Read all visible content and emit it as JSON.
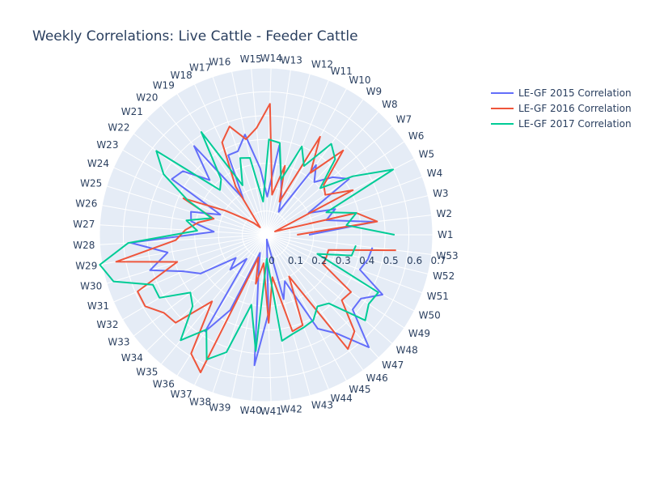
{
  "chart_data": {
    "type": "polar-line",
    "title": "Weekly Correlations: Live Cattle - Feeder Cattle",
    "angular_ticks": [
      "W1",
      "W2",
      "W3",
      "W4",
      "W5",
      "W6",
      "W7",
      "W8",
      "W9",
      "W10",
      "W11",
      "W12",
      "W13",
      "W14",
      "W15",
      "W16",
      "W17",
      "W18",
      "W19",
      "W20",
      "W21",
      "W22",
      "W23",
      "W24",
      "W25",
      "W26",
      "W27",
      "W28",
      "W29",
      "W30",
      "W31",
      "W32",
      "W33",
      "W34",
      "W35",
      "W36",
      "W37",
      "W38",
      "W39",
      "W40",
      "W41",
      "W42",
      "W43",
      "W44",
      "W45",
      "W46",
      "W47",
      "W48",
      "W49",
      "W50",
      "W51",
      "W52",
      "W53"
    ],
    "radial_ticks": [
      "0",
      "0.1",
      "0.2",
      "0.3",
      "0.4",
      "0.5",
      "0.6",
      "0.7"
    ],
    "rlim": [
      0,
      0.7
    ],
    "legend_position": "top-right",
    "series": [
      {
        "name": "LE-GF 2015 Correlation",
        "color": "#636efa",
        "values": [
          0.18,
          0.46,
          0.26,
          0.31,
          0.2,
          0.42,
          0.37,
          0.3,
          0.36,
          0.11,
          0.17,
          0.24,
          0.38,
          0.16,
          0.28,
          0.43,
          0.37,
          0.37,
          0.18,
          0.48,
          0.33,
          0.44,
          0.46,
          0.21,
          0.33,
          0.32,
          0.22,
          0.57,
          0.42,
          0.51,
          0.38,
          0.32,
          0.16,
          0.21,
          0.13,
          0.48,
          0.35,
          0.08,
          0.15,
          0.55,
          0.33,
          0.02,
          0.28,
          0.21,
          0.45,
          0.51,
          0.64,
          0.48,
          0.48,
          0.55,
          0.42,
          0.44,
          0.45
        ]
      },
      {
        "name": "LE-GF 2016 Correlation",
        "color": "#ef553b",
        "values": [
          0.13,
          0.47,
          0.39,
          0.04,
          0.41,
          0.3,
          0.32,
          0.48,
          0.32,
          0.47,
          0.15,
          0.3,
          0.17,
          0.55,
          0.45,
          0.41,
          0.48,
          0.43,
          0.24,
          0.04,
          0.07,
          0.11,
          0.2,
          0.38,
          0.23,
          0.29,
          0.34,
          0.38,
          0.64,
          0.39,
          0.59,
          0.59,
          0.54,
          0.53,
          0.36,
          0.59,
          0.64,
          0.1,
          0.21,
          0.12,
          0.37,
          0.18,
          0.42,
          0.41,
          0.2,
          0.59,
          0.55,
          0.42,
          0.43,
          0.27,
          0.27,
          0.27,
          0.55
        ]
      },
      {
        "name": "LE-GF 2017 Correlation",
        "color": "#00cc96",
        "values": [
          0.54,
          0.34,
          0.39,
          0.27,
          0.6,
          0.44,
          0.3,
          0.43,
          0.47,
          0.33,
          0.4,
          0.24,
          0.39,
          0.4,
          0.14,
          0.33,
          0.34,
          0.23,
          0.51,
          0.3,
          0.27,
          0.58,
          0.5,
          0.36,
          0.24,
          0.34,
          0.29,
          0.58,
          0.71,
          0.67,
          0.52,
          0.52,
          0.4,
          0.43,
          0.57,
          0.47,
          0.58,
          0.52,
          0.3,
          0.49,
          0.1,
          0.45,
          0.43,
          0.42,
          0.41,
          0.37,
          0.39,
          0.55,
          0.52,
          0.53,
          0.23,
          0.37,
          0.38
        ]
      }
    ]
  }
}
